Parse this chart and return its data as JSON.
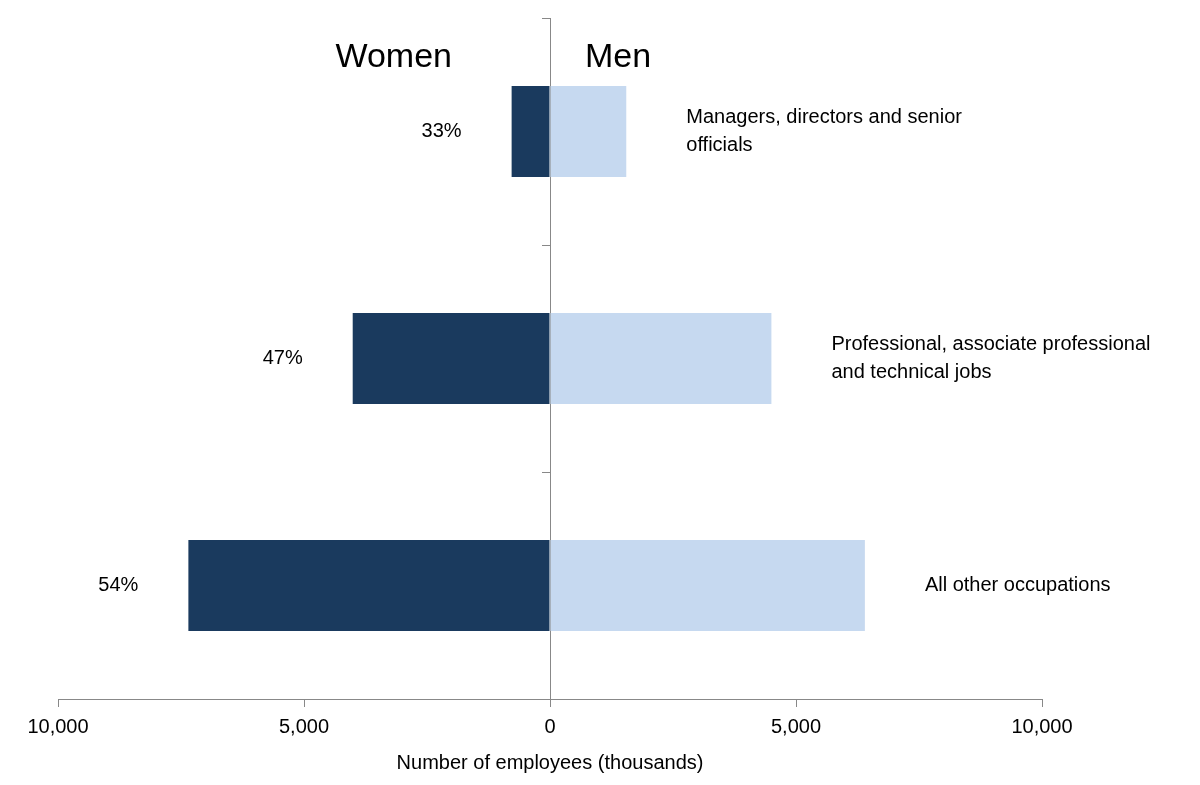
{
  "chart_data": {
    "type": "bar",
    "orientation": "horizontal",
    "stacked": true,
    "xlabel": "Number of employees (thousands)",
    "categories": [
      "Managers, directors and senior officials",
      "Professional, associate professional and technical jobs",
      "All other occupations"
    ],
    "series": [
      {
        "name": "Women",
        "color": "#1a3a5e",
        "values": [
          -780,
          -4010,
          -7350
        ]
      },
      {
        "name": "Men",
        "color": "#c6d9f0",
        "values": [
          1550,
          4500,
          6400
        ]
      }
    ],
    "xlim": [
      -10000,
      10000
    ],
    "xticks": [
      {
        "value": -10000,
        "label": "10,000"
      },
      {
        "value": -5000,
        "label": "5,000"
      },
      0,
      {
        "value": 5000,
        "label": "5,000"
      },
      {
        "value": 10000,
        "label": "10,000"
      }
    ],
    "annotations": [
      {
        "text": "33%",
        "x": -780,
        "y": "Managers, directors and senior officials"
      },
      {
        "text": "47%",
        "x": -4010,
        "y": "Professional, associate professional and technical jobs"
      },
      {
        "text": "54%",
        "x": -7350,
        "y": "All other occupations"
      }
    ],
    "legend": false
  }
}
